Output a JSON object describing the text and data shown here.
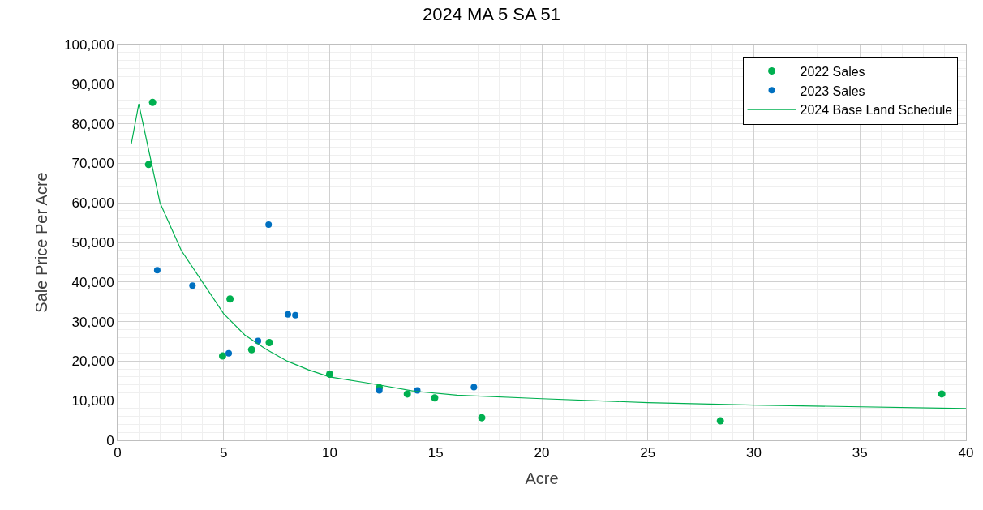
{
  "chart_data": {
    "type": "scatter",
    "title": "2024 MA 5 SA 51",
    "xlabel": "Acre",
    "ylabel": "Sale Price Per Acre",
    "xlim": [
      0,
      40
    ],
    "xticks": [
      0,
      5,
      10,
      15,
      20,
      25,
      30,
      35,
      40
    ],
    "ylim": [
      0,
      100000
    ],
    "yticks": [
      {
        "value": 0,
        "label": "0"
      },
      {
        "value": 10000,
        "label": "10,000"
      },
      {
        "value": 20000,
        "label": "20,000"
      },
      {
        "value": 30000,
        "label": "30,000"
      },
      {
        "value": 40000,
        "label": "40,000"
      },
      {
        "value": 50000,
        "label": "50,000"
      },
      {
        "value": 60000,
        "label": "60,000"
      },
      {
        "value": 70000,
        "label": "70,000"
      },
      {
        "value": 80000,
        "label": "80,000"
      },
      {
        "value": 90000,
        "label": "90,000"
      },
      {
        "value": 100000,
        "label": "100,000"
      }
    ],
    "grid": true,
    "legend": "top right",
    "series": [
      {
        "name": "2022 Sales",
        "marker": "circle",
        "color": "#00b050",
        "x": [
          1.65,
          1.46,
          5.3,
          6.32,
          7.15,
          4.95,
          10.0,
          12.34,
          13.66,
          14.95,
          17.17,
          28.42,
          38.86
        ],
        "values": [
          85400,
          69700,
          35700,
          22900,
          24700,
          21300,
          16700,
          13300,
          11700,
          10700,
          5700,
          4900,
          11700
        ]
      },
      {
        "name": "2023 Sales",
        "marker": "circle",
        "color": "#0070c0",
        "x": [
          1.87,
          3.53,
          7.12,
          8.03,
          8.38,
          6.62,
          5.24,
          12.34,
          14.13,
          16.8
        ],
        "values": [
          43000,
          39100,
          54500,
          31800,
          31600,
          25100,
          22000,
          12600,
          12600,
          13400
        ]
      },
      {
        "name": "2024 Base Land Schedule",
        "type": "line",
        "color": "#00b050",
        "x": [
          0.65,
          1,
          2,
          3,
          5,
          6,
          7,
          8,
          9,
          10,
          12,
          14,
          16,
          20,
          25,
          30,
          40
        ],
        "values": [
          75000,
          85000,
          60000,
          48000,
          32000,
          26600,
          23000,
          20000,
          17800,
          16000,
          14300,
          12400,
          11400,
          10500,
          9500,
          8900,
          8000
        ]
      }
    ]
  }
}
